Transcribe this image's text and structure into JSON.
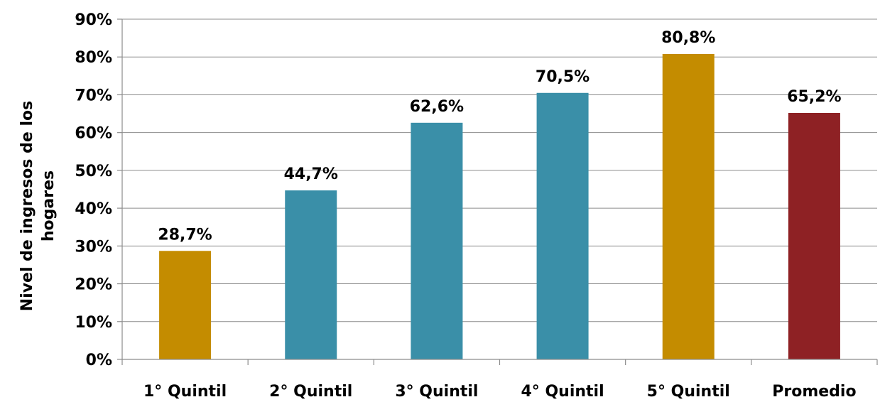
{
  "chart_data": {
    "type": "bar",
    "title": "",
    "xlabel": "",
    "ylabel": "Nivel de ingresos de los hogares",
    "ylabel_lines": [
      "Nivel de ingresos de los",
      "hogares"
    ],
    "ylim": [
      0,
      90
    ],
    "yticks": [
      0,
      10,
      20,
      30,
      40,
      50,
      60,
      70,
      80,
      90
    ],
    "ytick_labels": [
      "0%",
      "10%",
      "20%",
      "30%",
      "40%",
      "50%",
      "60%",
      "70%",
      "80%",
      "90%"
    ],
    "grid": true,
    "legend": "none",
    "categories": [
      "1° Quintil",
      "2° Quintil",
      "3° Quintil",
      "4° Quintil",
      "5° Quintil",
      "Promedio"
    ],
    "values": [
      28.7,
      44.7,
      62.6,
      70.5,
      80.8,
      65.2
    ],
    "data_labels": [
      "28,7%",
      "44,7%",
      "62,6%",
      "70,5%",
      "80,8%",
      "65,2%"
    ],
    "bar_colors": [
      "#C48C00",
      "#3A8FA8",
      "#3A8FA8",
      "#3A8FA8",
      "#C48C00",
      "#8E2124"
    ]
  }
}
